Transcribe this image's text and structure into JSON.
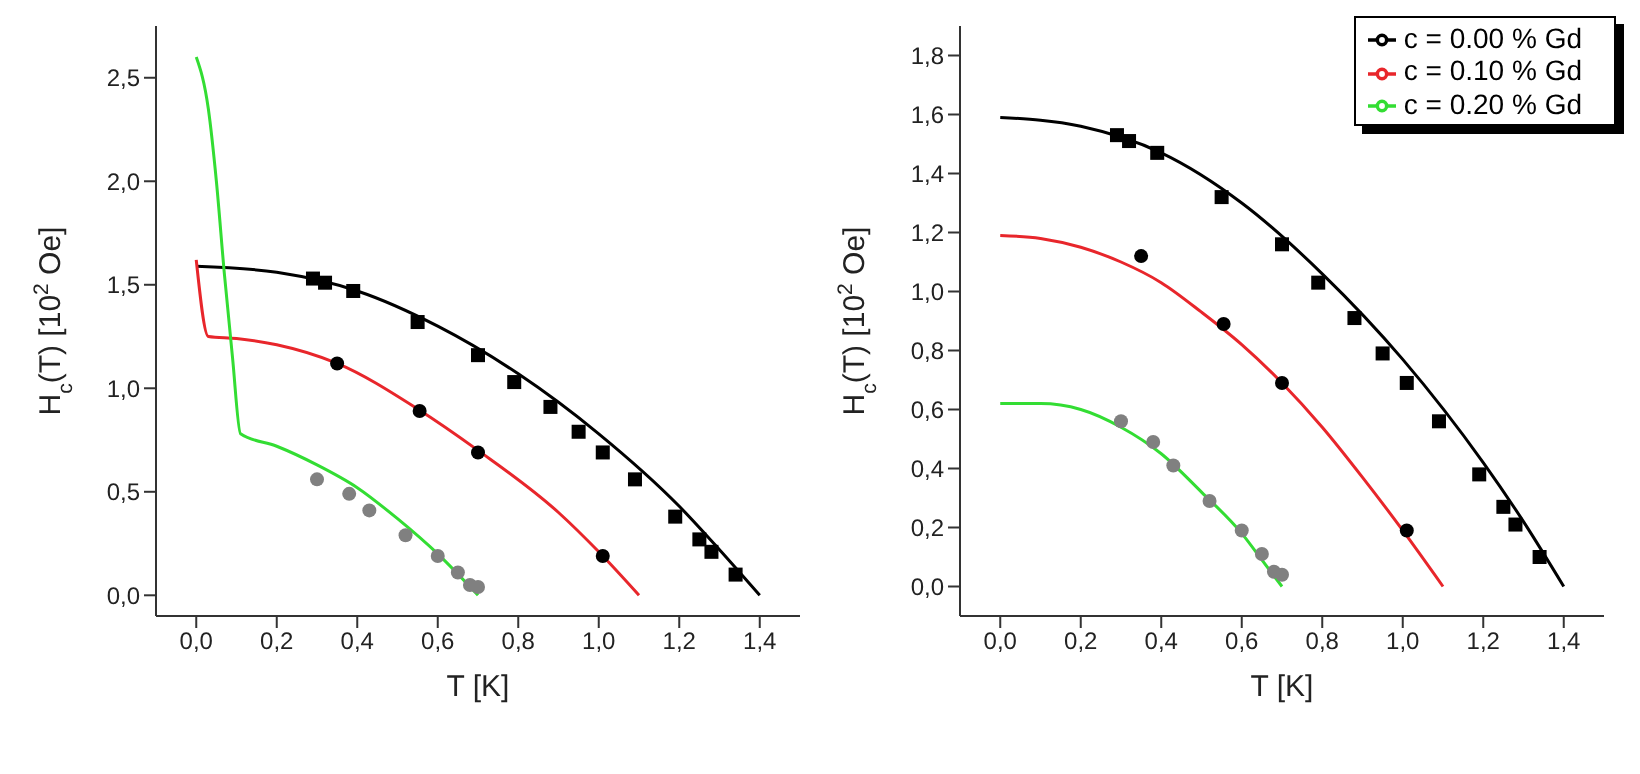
{
  "chart_data": [
    {
      "type": "line",
      "xlabel": "T [K]",
      "ylabel": "H$_{c}$(T) [10$^{2}$ Oe]",
      "xlim": [
        -0.1,
        1.5
      ],
      "ylim": [
        -0.1,
        2.75
      ],
      "xticks": [
        {
          "value": 0,
          "label": "0,0"
        },
        {
          "value": 0.2,
          "label": "0,2"
        },
        {
          "value": 0.4,
          "label": "0,4"
        },
        {
          "value": 0.6,
          "label": "0,6"
        },
        {
          "value": 0.8,
          "label": "0,8"
        },
        {
          "value": 1.0,
          "label": "1,0"
        },
        {
          "value": 1.2,
          "label": "1,2"
        },
        {
          "value": 1.4,
          "label": "1,4"
        }
      ],
      "yticks": [
        {
          "value": 0,
          "label": "0,0"
        },
        {
          "value": 0.5,
          "label": "0,5"
        },
        {
          "value": 1.0,
          "label": "1,0"
        },
        {
          "value": 1.5,
          "label": "1,5"
        },
        {
          "value": 2.0,
          "label": "2,0"
        },
        {
          "value": 2.5,
          "label": "2,5"
        }
      ],
      "grid": false,
      "legend": false,
      "line_style": "solid",
      "series": [
        {
          "color": "#000000",
          "marker": "none",
          "x": [
            0,
            0.2,
            0.4,
            0.6,
            0.8,
            1.0,
            1.2,
            1.3,
            1.4
          ],
          "values": [
            1.59,
            1.56,
            1.47,
            1.3,
            1.07,
            0.78,
            0.43,
            0.22,
            0
          ]
        },
        {
          "color": "#e8262b",
          "marker": "none",
          "x": [
            0,
            0.03,
            0.1,
            0.2,
            0.35,
            0.55,
            0.7,
            0.9,
            1.0,
            1.1
          ],
          "values": [
            1.62,
            1.25,
            1.24,
            1.21,
            1.12,
            0.9,
            0.7,
            0.4,
            0.21,
            0
          ]
        },
        {
          "color": "#33dd33",
          "marker": "none",
          "x": [
            0,
            0.03,
            0.05,
            0.07,
            0.09,
            0.11,
            0.2,
            0.3,
            0.4,
            0.5,
            0.6,
            0.7
          ],
          "values": [
            2.6,
            2.35,
            2.0,
            1.55,
            1.15,
            0.78,
            0.72,
            0.63,
            0.52,
            0.37,
            0.2,
            0
          ]
        },
        {
          "type": "scatter",
          "color": "#000000",
          "marker": "square",
          "x": [
            0.29,
            0.32,
            0.39,
            0.55,
            0.7,
            0.79,
            0.88,
            0.95,
            1.01,
            1.09,
            1.19,
            1.25,
            1.28,
            1.34
          ],
          "values": [
            1.53,
            1.51,
            1.47,
            1.32,
            1.16,
            1.03,
            0.91,
            0.79,
            0.69,
            0.56,
            0.38,
            0.27,
            0.21,
            0.1
          ]
        },
        {
          "type": "scatter",
          "color": "#000000",
          "marker": "circle",
          "x": [
            0.35,
            0.555,
            0.7,
            1.01
          ],
          "values": [
            1.12,
            0.89,
            0.69,
            0.19
          ]
        },
        {
          "type": "scatter",
          "color": "#808080",
          "marker": "circle",
          "x": [
            0.3,
            0.38,
            0.43,
            0.52,
            0.6,
            0.65,
            0.68,
            0.7
          ],
          "values": [
            0.56,
            0.49,
            0.41,
            0.29,
            0.19,
            0.11,
            0.05,
            0.04
          ]
        }
      ]
    },
    {
      "type": "line",
      "xlabel": "T [K]",
      "ylabel": "H$_{c}$(T) [10$^{2}$ Oe]",
      "xlim": [
        -0.1,
        1.5
      ],
      "ylim": [
        -0.1,
        1.9
      ],
      "xticks": [
        {
          "value": 0,
          "label": "0,0"
        },
        {
          "value": 0.2,
          "label": "0,2"
        },
        {
          "value": 0.4,
          "label": "0,4"
        },
        {
          "value": 0.6,
          "label": "0,6"
        },
        {
          "value": 0.8,
          "label": "0,8"
        },
        {
          "value": 1.0,
          "label": "1,0"
        },
        {
          "value": 1.2,
          "label": "1,2"
        },
        {
          "value": 1.4,
          "label": "1,4"
        }
      ],
      "yticks": [
        {
          "value": 0,
          "label": "0,0"
        },
        {
          "value": 0.2,
          "label": "0,2"
        },
        {
          "value": 0.4,
          "label": "0,4"
        },
        {
          "value": 0.6,
          "label": "0,6"
        },
        {
          "value": 0.8,
          "label": "0,8"
        },
        {
          "value": 1.0,
          "label": "1,0"
        },
        {
          "value": 1.2,
          "label": "1,2"
        },
        {
          "value": 1.4,
          "label": "1,4"
        },
        {
          "value": 1.6,
          "label": "1,6"
        },
        {
          "value": 1.8,
          "label": "1,8"
        }
      ],
      "grid": false,
      "legend": "top right",
      "line_style": "solid",
      "series": [
        {
          "name": "c = 0.00 % Gd",
          "color": "#000000",
          "marker": "none",
          "x": [
            0,
            0.2,
            0.4,
            0.6,
            0.8,
            1.0,
            1.2,
            1.3,
            1.4
          ],
          "values": [
            1.59,
            1.56,
            1.47,
            1.3,
            1.06,
            0.77,
            0.42,
            0.22,
            0
          ]
        },
        {
          "name": "c = 0.10 % Gd",
          "color": "#e8262b",
          "marker": "none",
          "x": [
            0,
            0.1,
            0.2,
            0.3,
            0.4,
            0.5,
            0.6,
            0.7,
            0.8,
            0.9,
            1.0,
            1.1
          ],
          "values": [
            1.19,
            1.18,
            1.15,
            1.1,
            1.03,
            0.93,
            0.82,
            0.69,
            0.54,
            0.37,
            0.19,
            0
          ]
        },
        {
          "name": "c = 0.20 % Gd",
          "color": "#33dd33",
          "marker": "none",
          "x": [
            0,
            0.1,
            0.2,
            0.3,
            0.4,
            0.5,
            0.6,
            0.65,
            0.7
          ],
          "values": [
            0.62,
            0.62,
            0.6,
            0.54,
            0.45,
            0.32,
            0.18,
            0.09,
            0
          ]
        },
        {
          "type": "scatter",
          "color": "#000000",
          "marker": "square",
          "x": [
            0.29,
            0.32,
            0.39,
            0.55,
            0.7,
            0.79,
            0.88,
            0.95,
            1.01,
            1.09,
            1.19,
            1.25,
            1.28,
            1.34
          ],
          "values": [
            1.53,
            1.51,
            1.47,
            1.32,
            1.16,
            1.03,
            0.91,
            0.79,
            0.69,
            0.56,
            0.38,
            0.27,
            0.21,
            0.1
          ]
        },
        {
          "type": "scatter",
          "color": "#000000",
          "marker": "circle",
          "x": [
            0.35,
            0.555,
            0.7,
            1.01
          ],
          "values": [
            1.12,
            0.89,
            0.69,
            0.19
          ]
        },
        {
          "type": "scatter",
          "color": "#808080",
          "marker": "circle",
          "x": [
            0.3,
            0.38,
            0.43,
            0.52,
            0.6,
            0.65,
            0.68,
            0.7
          ],
          "values": [
            0.56,
            0.49,
            0.41,
            0.29,
            0.19,
            0.11,
            0.05,
            0.04
          ]
        }
      ]
    }
  ]
}
